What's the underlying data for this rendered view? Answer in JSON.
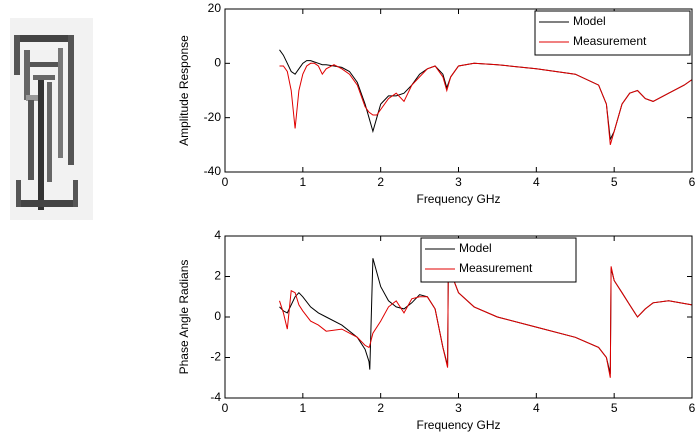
{
  "chart_data": [
    {
      "type": "line",
      "xlabel": "Frequency GHz",
      "ylabel": "Amplitude Response",
      "x": [
        0.7,
        0.75,
        0.8,
        0.85,
        0.9,
        0.95,
        1.0,
        1.05,
        1.1,
        1.15,
        1.2,
        1.25,
        1.3,
        1.4,
        1.5,
        1.6,
        1.7,
        1.8,
        1.85,
        1.9,
        1.95,
        2.0,
        2.1,
        2.2,
        2.3,
        2.4,
        2.5,
        2.6,
        2.7,
        2.8,
        2.85,
        2.9,
        3.0,
        3.2,
        3.5,
        4.0,
        4.5,
        4.8,
        4.9,
        4.95,
        5.0,
        5.1,
        5.2,
        5.3,
        5.4,
        5.5,
        5.7,
        5.9,
        6.0
      ],
      "series": [
        {
          "name": "Model",
          "color": "#000000",
          "values": [
            5,
            3,
            0,
            -3,
            -4,
            -2,
            0,
            1,
            1,
            0.5,
            0,
            -0.5,
            -0.5,
            -1,
            -1.5,
            -3,
            -7,
            -15,
            -20,
            -25,
            -20,
            -15,
            -12,
            -12,
            -11,
            -8,
            -4,
            -2,
            -1,
            -4,
            -9,
            -5,
            -1,
            0,
            -0.5,
            -2,
            -4,
            -8,
            -15,
            -28,
            -25,
            -15,
            -11,
            -10,
            -13,
            -14,
            -11,
            -8,
            -6
          ]
        },
        {
          "name": "Measurement",
          "color": "#e00000",
          "values": [
            -1,
            -1,
            -3,
            -10,
            -24,
            -10,
            -4,
            -1,
            0,
            0,
            -1,
            -4,
            -2,
            -0.5,
            -2,
            -4,
            -8,
            -16,
            -18,
            -19,
            -19,
            -17,
            -13,
            -11,
            -14,
            -8,
            -5,
            -2,
            -1,
            -5,
            -10,
            -5,
            -1,
            0,
            -0.5,
            -2,
            -4,
            -8,
            -15,
            -30,
            -25,
            -15,
            -11,
            -10,
            -13,
            -14,
            -11,
            -8,
            -6
          ]
        }
      ],
      "xlim": [
        0,
        6
      ],
      "ylim": [
        -40,
        20
      ],
      "xticks": [
        0,
        1,
        2,
        3,
        4,
        5,
        6
      ],
      "yticks": [
        -40,
        -20,
        0,
        20
      ],
      "legend": "upper right",
      "grid": false
    },
    {
      "type": "line",
      "xlabel": "Frequency GHz",
      "ylabel": "Phase Angle Radians",
      "x": [
        0.7,
        0.75,
        0.8,
        0.85,
        0.9,
        0.95,
        1.0,
        1.1,
        1.2,
        1.3,
        1.5,
        1.7,
        1.8,
        1.85,
        1.86,
        1.9,
        2.0,
        2.1,
        2.2,
        2.3,
        2.4,
        2.5,
        2.6,
        2.7,
        2.8,
        2.86,
        2.87,
        2.9,
        3.0,
        3.2,
        3.5,
        4.0,
        4.5,
        4.8,
        4.9,
        4.95,
        4.96,
        5.0,
        5.1,
        5.2,
        5.3,
        5.4,
        5.5,
        5.7,
        6.0
      ],
      "series": [
        {
          "name": "Model",
          "color": "#000000",
          "values": [
            0.5,
            0.3,
            0.2,
            0.6,
            1.0,
            1.2,
            1.0,
            0.5,
            0.2,
            0,
            -0.4,
            -1.0,
            -1.6,
            -2.2,
            -2.6,
            2.9,
            1.5,
            0.8,
            0.5,
            0.4,
            0.7,
            1.1,
            1.0,
            0.4,
            -1.5,
            -2.4,
            2.9,
            2.2,
            1.2,
            0.5,
            0,
            -0.5,
            -1,
            -1.5,
            -2.0,
            -2.8,
            2.4,
            1.8,
            1.2,
            0.6,
            0.0,
            0.4,
            0.7,
            0.8,
            0.6
          ]
        },
        {
          "name": "Measurement",
          "color": "#e00000",
          "values": [
            0.8,
            0.2,
            -0.6,
            1.3,
            1.2,
            0.6,
            0.3,
            -0.2,
            -0.4,
            -0.7,
            -0.6,
            -1.0,
            -1.4,
            -1.5,
            -1.4,
            -0.8,
            -0.2,
            0.5,
            0.8,
            0.2,
            0.9,
            1.0,
            1.0,
            0.4,
            -1.5,
            -2.5,
            3.0,
            2.2,
            1.2,
            0.5,
            0,
            -0.5,
            -1,
            -1.5,
            -2.0,
            -3.0,
            2.5,
            1.8,
            1.2,
            0.6,
            0.0,
            0.4,
            0.7,
            0.8,
            0.6
          ]
        }
      ],
      "xlim": [
        0,
        6
      ],
      "ylim": [
        -4,
        4
      ],
      "xticks": [
        0,
        1,
        2,
        3,
        4,
        5,
        6
      ],
      "yticks": [
        -4,
        -2,
        0,
        2,
        4
      ],
      "legend": "upper center",
      "grid": false
    }
  ]
}
